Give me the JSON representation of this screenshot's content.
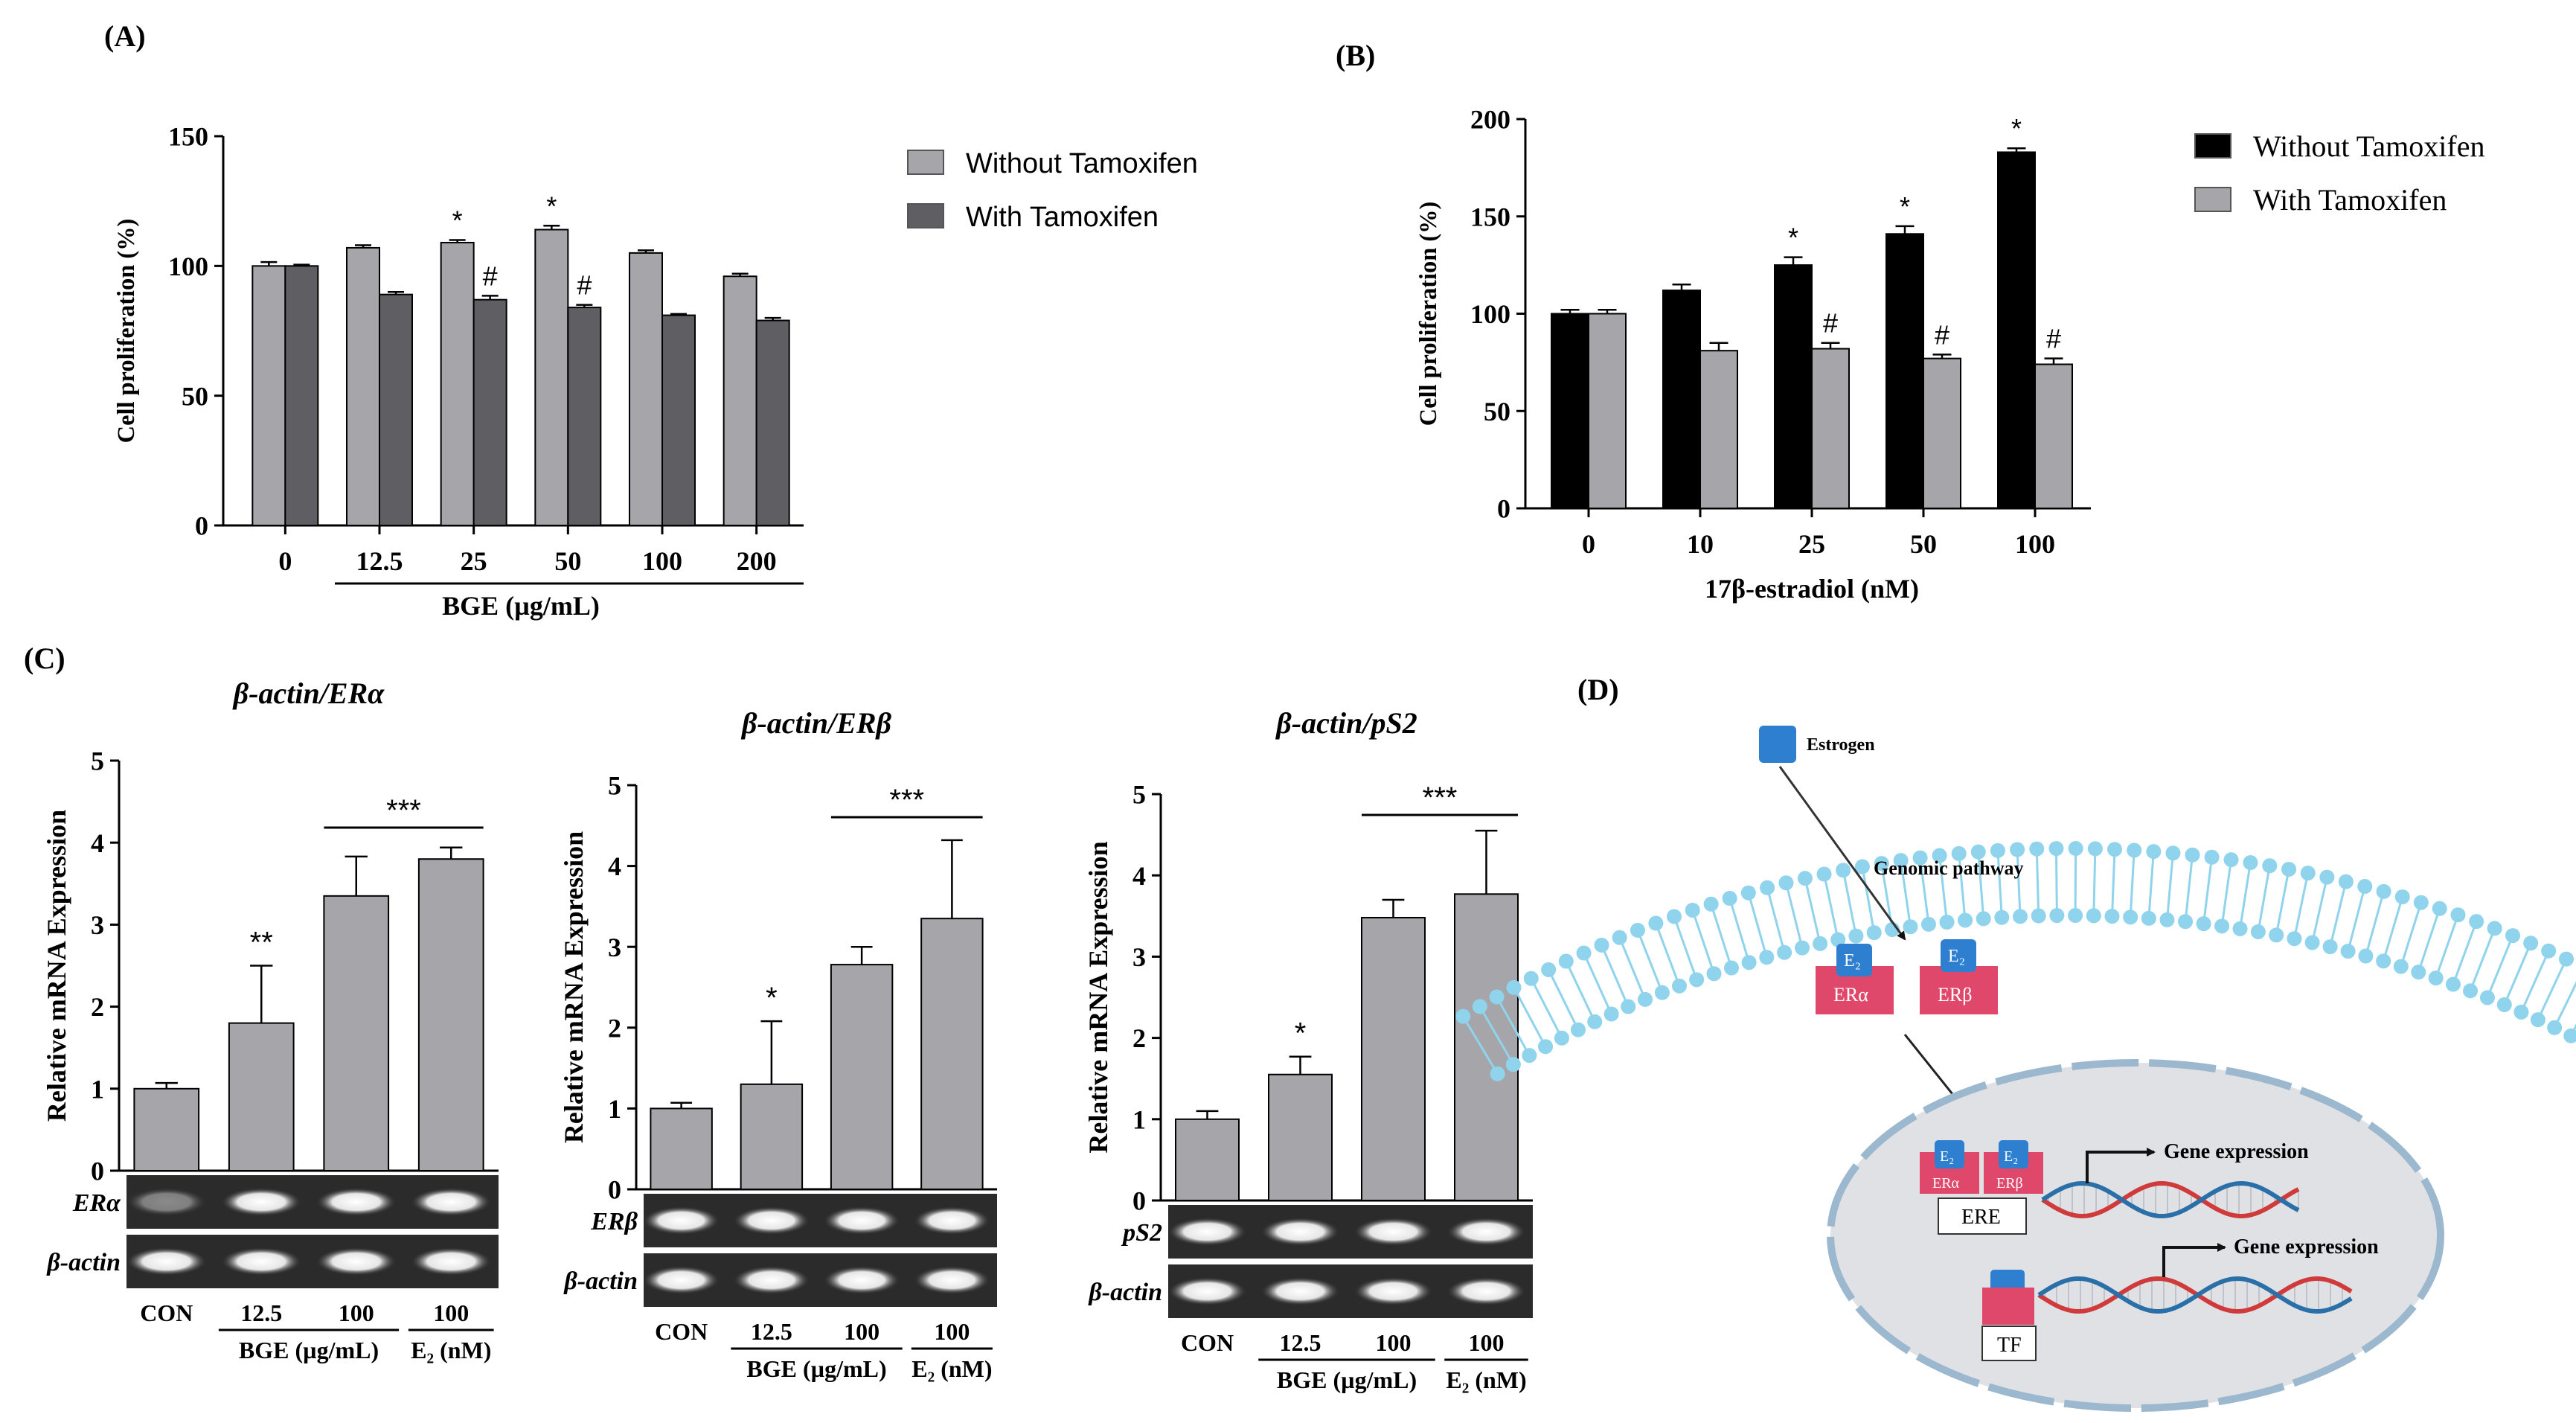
{
  "panels": {
    "A": {
      "letter": "(A)"
    },
    "B": {
      "letter": "(B)"
    },
    "C": {
      "letter": "(C)"
    },
    "D": {
      "letter": "(D)"
    }
  },
  "chart_data": [
    {
      "panel": "A",
      "type": "bar",
      "categories": [
        "0",
        "12.5",
        "25",
        "50",
        "100",
        "200"
      ],
      "xlabel": "BGE (µg/mL)",
      "ylabel": "Cell proliferation (%)",
      "ylim": [
        0,
        150
      ],
      "yticks": [
        "0",
        "50",
        "100",
        "150"
      ],
      "legend_position": "right",
      "series": [
        {
          "name": "Without Tamoxifen",
          "color": "#a6a6aa",
          "values": [
            100,
            107,
            109,
            114,
            105,
            96
          ],
          "errors": [
            1.5,
            1,
            1,
            1.5,
            1,
            1
          ],
          "marks": [
            "",
            "",
            "*",
            "*",
            "",
            ""
          ]
        },
        {
          "name": "With Tamoxifen",
          "color": "#5f5f63",
          "values": [
            100,
            89,
            87,
            84,
            81,
            79
          ],
          "errors": [
            0.5,
            1,
            1.5,
            1,
            0.5,
            1
          ],
          "marks": [
            "",
            "",
            "#",
            "#",
            "",
            ""
          ]
        }
      ]
    },
    {
      "panel": "B",
      "type": "bar",
      "categories": [
        "0",
        "10",
        "25",
        "50",
        "100"
      ],
      "xlabel": "17β-estradiol (nM)",
      "ylabel": "Cell proliferation (%)",
      "ylim": [
        0,
        200
      ],
      "yticks": [
        "0",
        "50",
        "100",
        "150",
        "200"
      ],
      "legend_position": "right",
      "series": [
        {
          "name": "Without Tamoxifen",
          "color": "#000000",
          "values": [
            100,
            112,
            125,
            141,
            183
          ],
          "errors": [
            2,
            3,
            4,
            4,
            2
          ],
          "marks": [
            "",
            "",
            "*",
            "*",
            "*"
          ]
        },
        {
          "name": "With Tamoxifen",
          "color": "#a6a6aa",
          "values": [
            100,
            81,
            82,
            77,
            74
          ],
          "errors": [
            2,
            4,
            3,
            2,
            3
          ],
          "marks": [
            "",
            "",
            "#",
            "#",
            "#"
          ]
        }
      ]
    },
    {
      "panel": "C1",
      "type": "bar",
      "title": "β-actin/ERα",
      "categories": [
        "CON",
        "12.5",
        "100",
        "100"
      ],
      "ylabel": "Relative mRNA Expression",
      "ylim": [
        0,
        5
      ],
      "yticks": [
        "0",
        "1",
        "2",
        "3",
        "4",
        "5"
      ],
      "values": [
        1.0,
        1.8,
        3.35,
        3.8
      ],
      "errors": [
        0.07,
        0.7,
        0.48,
        0.14
      ],
      "marks": [
        "",
        "**",
        "",
        ""
      ],
      "bracket_label": "***",
      "group_labels": [
        "BGE (µg/mL)",
        "E₂ (nM)"
      ],
      "gel_rows": [
        "ERα",
        "β-actin"
      ]
    },
    {
      "panel": "C2",
      "type": "bar",
      "title": "β-actin/ERβ",
      "categories": [
        "CON",
        "12.5",
        "100",
        "100"
      ],
      "ylabel": "Relative mRNA Expression",
      "ylim": [
        0,
        5
      ],
      "yticks": [
        "0",
        "1",
        "2",
        "3",
        "4",
        "5"
      ],
      "values": [
        1.0,
        1.3,
        2.78,
        3.35
      ],
      "errors": [
        0.07,
        0.78,
        0.22,
        0.97
      ],
      "marks": [
        "",
        "*",
        "",
        ""
      ],
      "bracket_label": "***",
      "group_labels": [
        "BGE (µg/mL)",
        "E₂ (nM)"
      ],
      "gel_rows": [
        "ERβ",
        "β-actin"
      ]
    },
    {
      "panel": "C3",
      "type": "bar",
      "title": "β-actin/pS2",
      "categories": [
        "CON",
        "12.5",
        "100",
        "100"
      ],
      "ylabel": "Relative mRNA Expression",
      "ylim": [
        0,
        5
      ],
      "yticks": [
        "0",
        "1",
        "2",
        "3",
        "4",
        "5"
      ],
      "values": [
        1.0,
        1.55,
        3.48,
        3.77
      ],
      "errors": [
        0.1,
        0.22,
        0.22,
        0.78
      ],
      "marks": [
        "",
        "*",
        "",
        ""
      ],
      "bracket_label": "***",
      "group_labels": [
        "BGE (µg/mL)",
        "E₂ (nM)"
      ],
      "gel_rows": [
        "pS2",
        "β-actin"
      ]
    }
  ],
  "diagram_D": {
    "estrogen": "Estrogen",
    "pathway": "Genomic pathway",
    "e2": "E₂",
    "er_alpha": "ERα",
    "er_beta": "ERβ",
    "ere": "ERE",
    "tf": "TF",
    "gene_expression": "Gene expression",
    "colors": {
      "receptor": "#e0486b",
      "ligand": "#2f7fd0",
      "membrane": "#8fd3ec",
      "nucleus": "#dfe1e5"
    }
  }
}
